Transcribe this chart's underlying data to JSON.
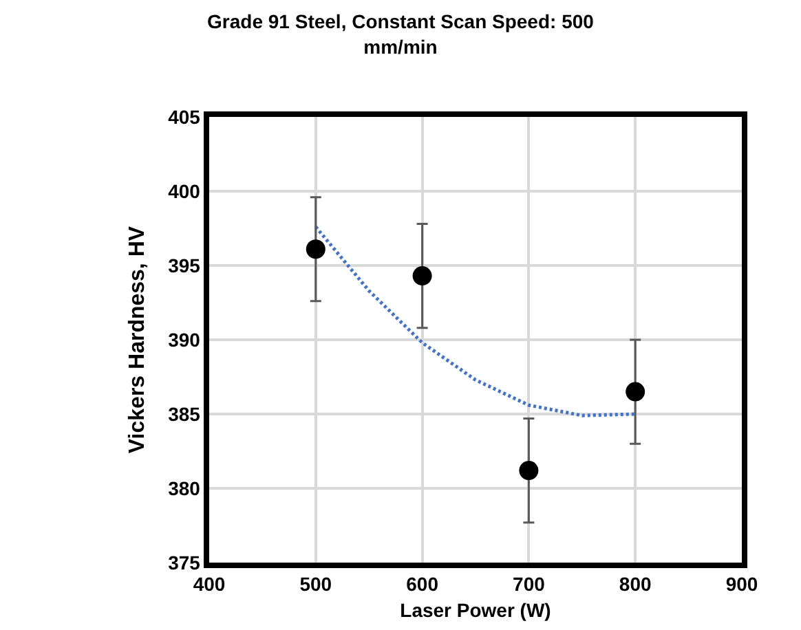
{
  "chart_data": {
    "type": "scatter",
    "title": "Grade 91 Steel, Constant Scan Speed: 500 mm/min",
    "xlabel": "Laser Power (W)",
    "ylabel": "Vickers Hardness, HV",
    "xlim": [
      400,
      900
    ],
    "xticks": [
      400,
      500,
      600,
      700,
      800,
      900
    ],
    "ylim": [
      375,
      405
    ],
    "yticks": [
      375,
      380,
      385,
      390,
      395,
      400,
      405
    ],
    "grid": true,
    "marker": "circle",
    "series": [
      {
        "type": "scatter",
        "color": "#000000",
        "x": [
          500,
          600,
          700,
          800
        ],
        "values": [
          396.1,
          394.3,
          381.2,
          386.5
        ],
        "errors": [
          3.5,
          3.5,
          3.5,
          3.5
        ]
      },
      {
        "type": "line",
        "color": "#4472c4",
        "line_style": "dotted",
        "marker": "none",
        "x": [
          500,
          550,
          600,
          650,
          700,
          750,
          800
        ],
        "values": [
          397.6,
          393.3,
          389.8,
          387.3,
          385.6,
          384.9,
          385.0
        ]
      }
    ]
  }
}
